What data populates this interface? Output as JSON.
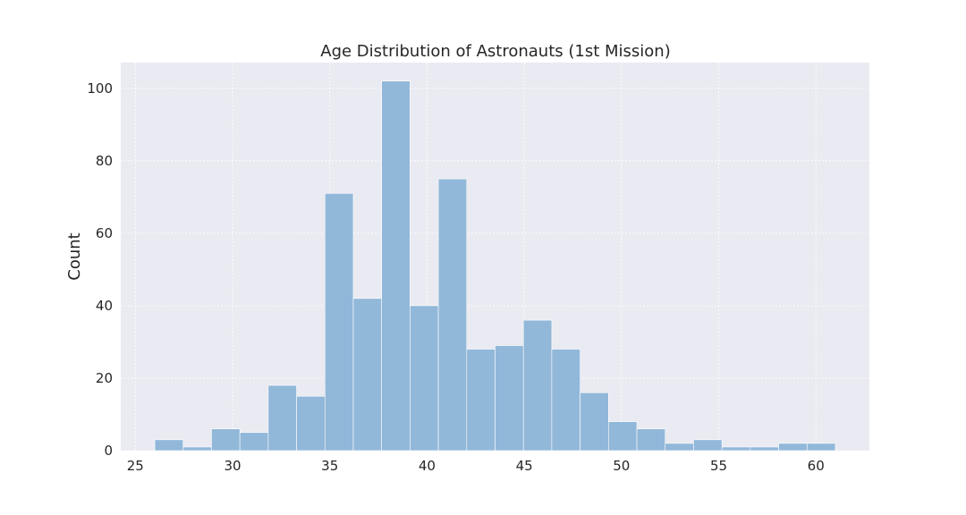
{
  "chart_data": {
    "type": "bar",
    "subtype": "histogram",
    "title": "Age Distribution of Astronauts (1st Mission)",
    "xlabel": "",
    "ylabel": "Count",
    "xlim": [
      24.25,
      62.75
    ],
    "ylim": [
      0,
      107.1
    ],
    "xticks": [
      25,
      30,
      35,
      40,
      45,
      50,
      55,
      60
    ],
    "yticks": [
      0,
      20,
      40,
      60,
      80,
      100
    ],
    "bin_edges": [
      26,
      27.458,
      28.917,
      30.375,
      31.833,
      33.292,
      34.75,
      36.208,
      37.667,
      39.125,
      40.583,
      42.042,
      43.5,
      44.958,
      46.417,
      47.875,
      49.333,
      50.792,
      52.25,
      53.708,
      55.167,
      56.625,
      58.083,
      59.542,
      61
    ],
    "counts": [
      3,
      1,
      6,
      5,
      18,
      15,
      71,
      42,
      102,
      40,
      75,
      28,
      29,
      36,
      28,
      16,
      8,
      6,
      2,
      3,
      1,
      1,
      2,
      2
    ],
    "bar_color": "#92b8d9",
    "background_color": "#eaeaf2",
    "grid": true,
    "legend": false
  }
}
